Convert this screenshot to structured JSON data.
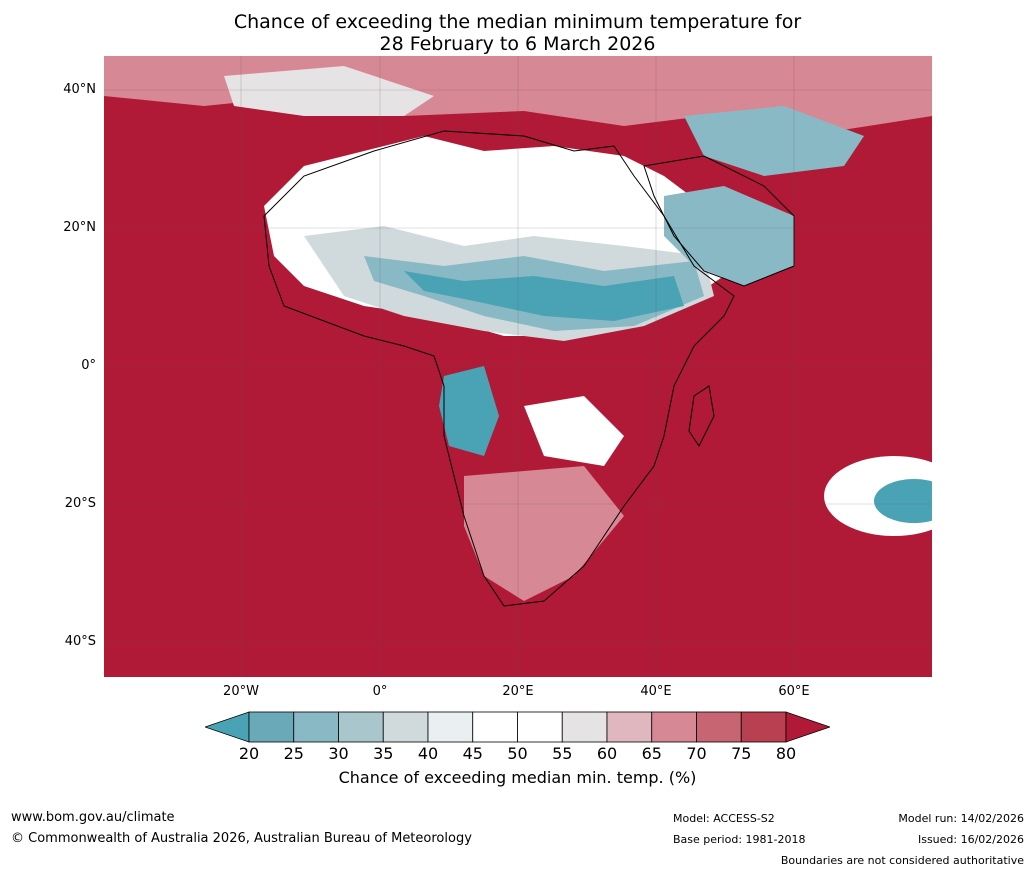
{
  "title": {
    "line1": "Chance of exceeding the median minimum temperature for",
    "line2": "28 February to 6 March 2026"
  },
  "axes": {
    "lat_labels": [
      "40°N",
      "20°N",
      "0°",
      "20°S",
      "40°S"
    ],
    "lon_labels": [
      "20°W",
      "0°",
      "20°E",
      "40°E",
      "60°E"
    ]
  },
  "colorbar": {
    "ticks": [
      "20",
      "25",
      "30",
      "35",
      "40",
      "45",
      "50",
      "55",
      "60",
      "65",
      "70",
      "75",
      "80"
    ],
    "colors": [
      "#4aa3b4",
      "#6aaab8",
      "#89b9c5",
      "#a9c6cc",
      "#d0d9dc",
      "#eaf0f2",
      "#ffffff",
      "#ffffff",
      "#e6e3e5",
      "#e0b7be",
      "#d68994",
      "#c86573",
      "#b94051",
      "#b01a36"
    ],
    "label": "Chance of exceeding median min. temp. (%)"
  },
  "footer": {
    "url": "www.bom.gov.au/climate",
    "copyright": "© Commonwealth of Australia 2026, Australian Bureau of Meteorology",
    "model": "Model: ACCESS-S2",
    "base_period": "Base period: 1981-2018",
    "model_run": "Model run: 14/02/2026",
    "issued": "Issued: 16/02/2026",
    "disclaimer": "Boundaries are not considered authoritative"
  },
  "map": {
    "background_color": "#b01a36",
    "land_outline_color": "#000000",
    "border_color": "#808080"
  }
}
